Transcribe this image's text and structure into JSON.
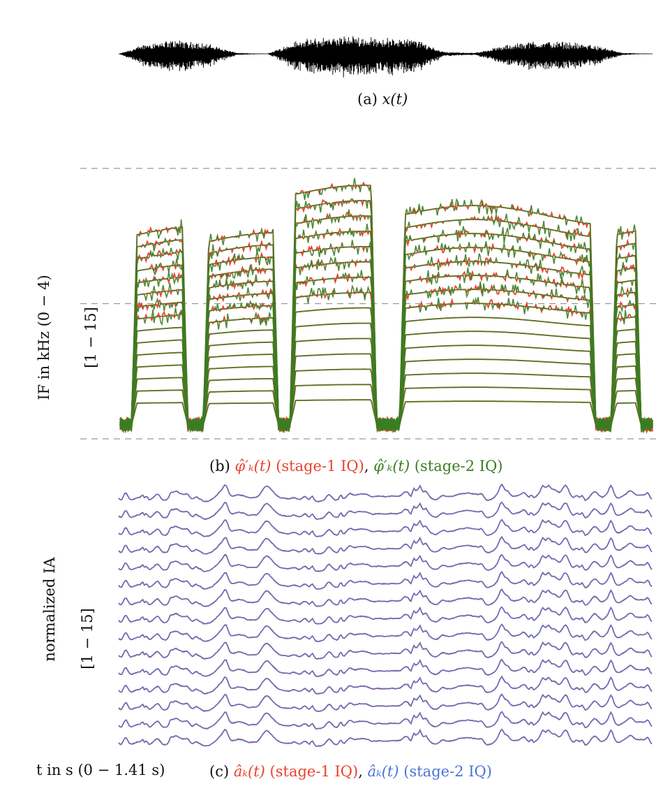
{
  "panels": {
    "a": {
      "caption_prefix": "(a)",
      "caption_math": "x(t)"
    },
    "b": {
      "caption_prefix": "(b)",
      "ylabel": "IF in kHz (0 − 4)",
      "ylabel_range": "[1 − 15]",
      "legend": [
        {
          "math": "φ̂′ₖ(t)",
          "text": "(stage-1 IQ)",
          "color": "#e8432e"
        },
        {
          "math": "φ̂′ₖ(t)",
          "text": "(stage-2 IQ)",
          "color": "#3a7d22"
        }
      ]
    },
    "c": {
      "caption_prefix": "(c)",
      "ylabel": "normalized IA",
      "ylabel_range": "[1 − 15]",
      "xlabel": "t in s (0 − 1.41 s)",
      "legend": [
        {
          "math": "âₖ(t)",
          "text": "(stage-1 IQ)",
          "color": "#e8432e"
        },
        {
          "math": "âₖ(t)",
          "text": "(stage-2 IQ)",
          "color": "#4a74d8"
        }
      ]
    }
  },
  "chart_data": [
    {
      "type": "line",
      "panel": "a",
      "series": [
        {
          "values_envelope": [
            0.0,
            0.6,
            0.75,
            0.55,
            0.05,
            0.0,
            0.7,
            0.9,
            0.95,
            0.85,
            0.8,
            0.1,
            0.05,
            0.45,
            0.7,
            0.65,
            0.5,
            0.05,
            0.0
          ]
        }
      ],
      "color": "#000000"
    },
    {
      "type": "line",
      "panel": "b",
      "n_channels": 15,
      "x_range_s": [
        0,
        1.41
      ],
      "y_range_khz": [
        0,
        4
      ],
      "gridlines_khz": [
        0,
        2,
        4
      ],
      "series_colors": [
        "#e8432e",
        "#3a7d22"
      ],
      "segments_s": [
        [
          0.03,
          0.18
        ],
        [
          0.22,
          0.42
        ],
        [
          0.45,
          0.68
        ],
        [
          0.74,
          1.26
        ],
        [
          1.3,
          1.38
        ]
      ],
      "f0_khz_top_channel": [
        3.0,
        2.9,
        3.6,
        3.3,
        3.0
      ]
    },
    {
      "type": "line",
      "panel": "c",
      "n_channels": 15,
      "x_range_s": [
        0,
        1.41
      ],
      "series_colors": [
        "#e8432e",
        "#4a74d8"
      ]
    }
  ]
}
